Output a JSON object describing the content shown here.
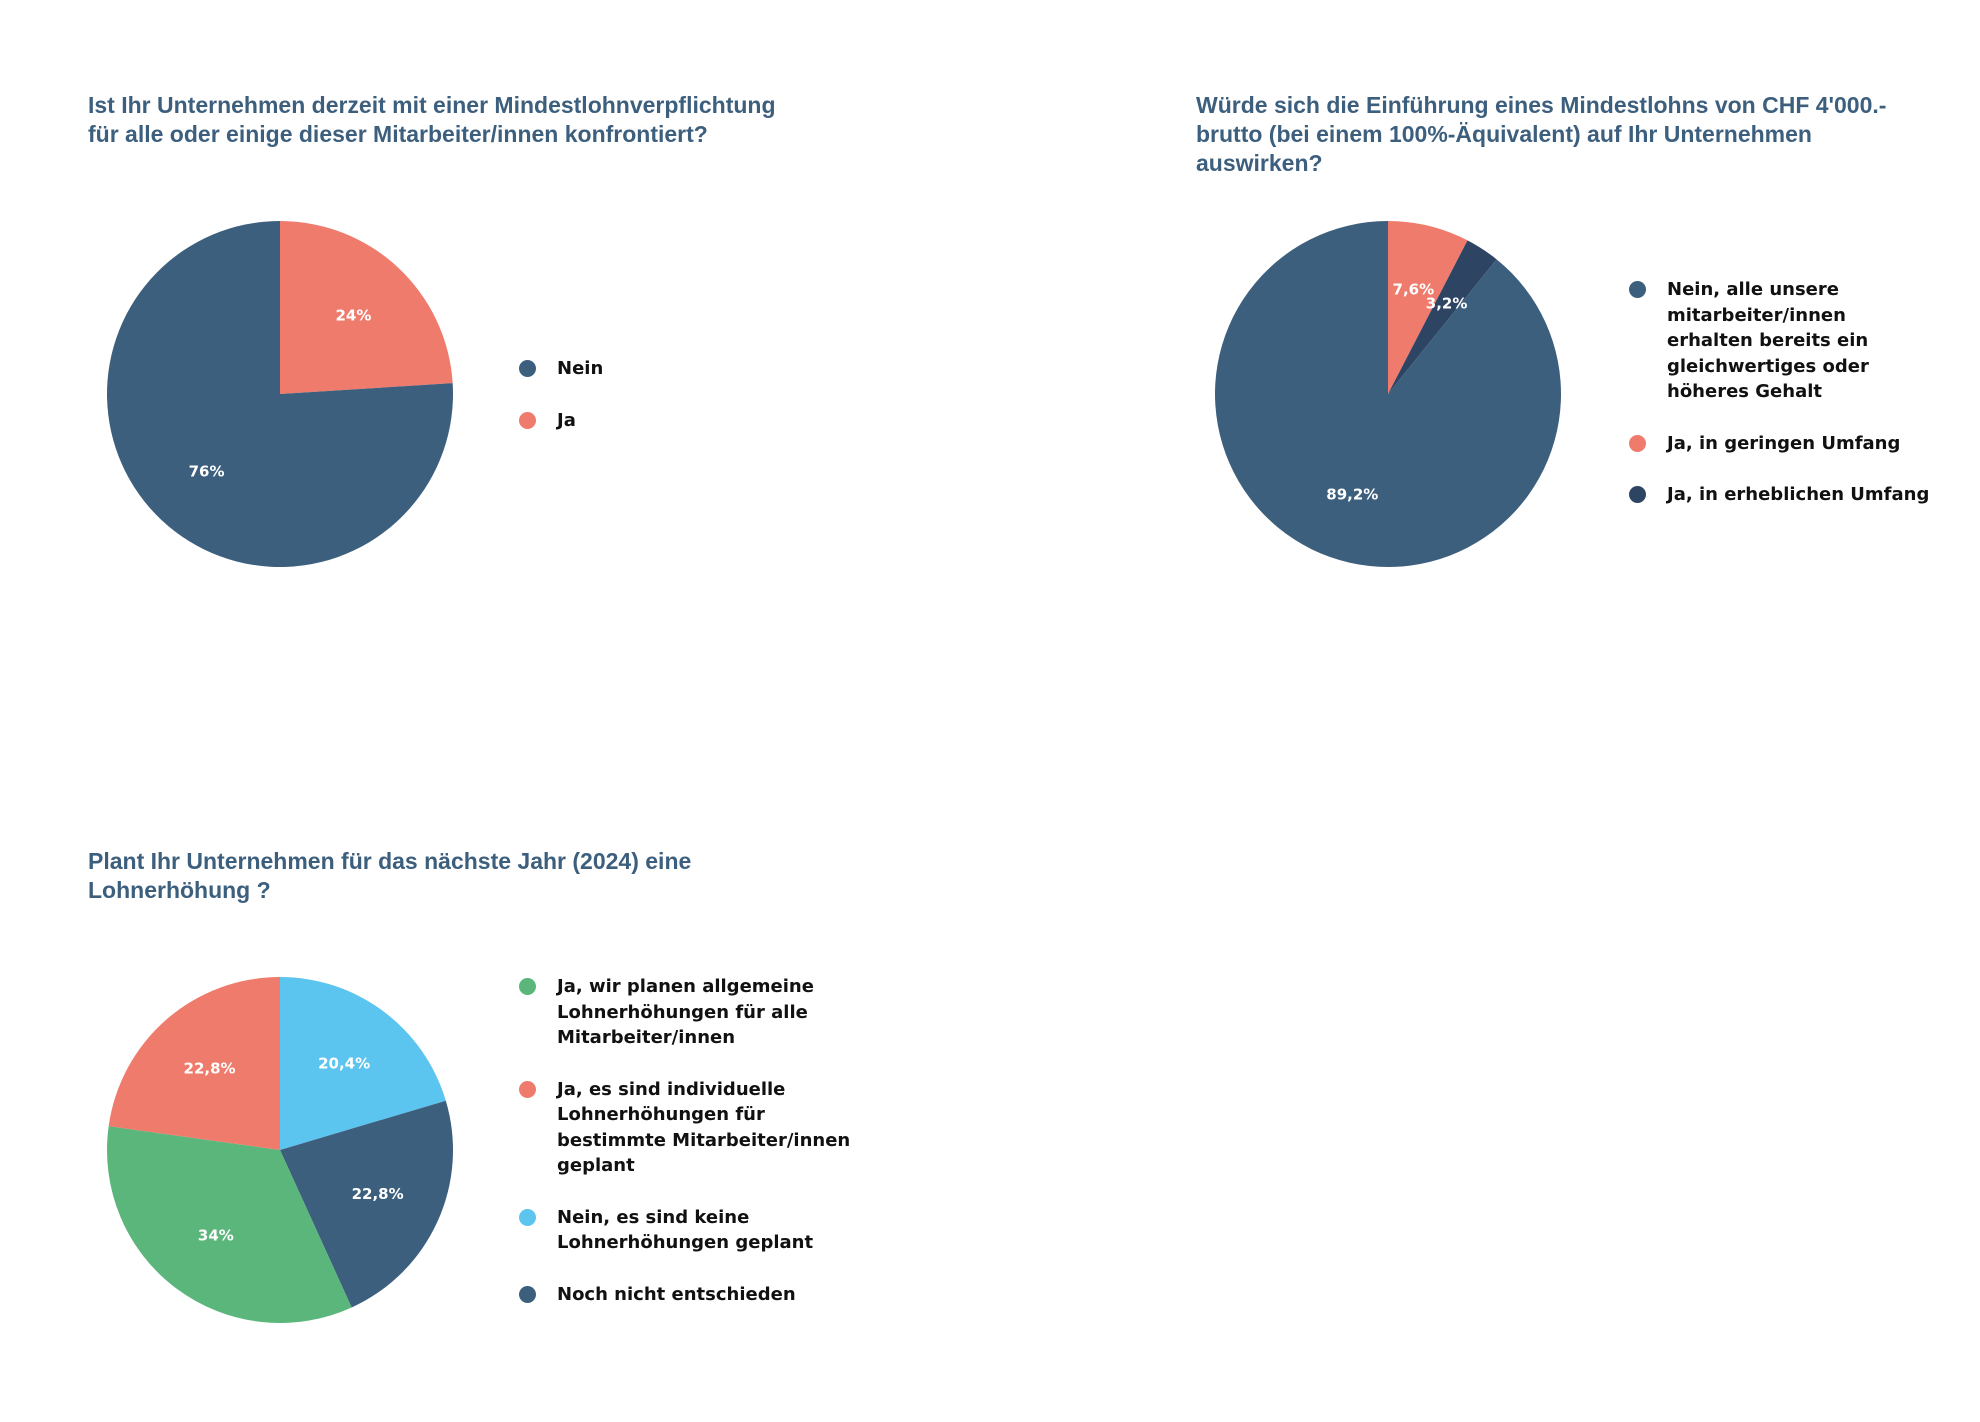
{
  "chart_data": [
    {
      "type": "pie",
      "title": "Ist Ihr Unternehmen derzeit mit einer Mindestlohnverpflichtung für alle oder einige dieser Mitarbeiter/innen konfrontiert?",
      "title_lines": [
        "Ist Ihr Unternehmen derzeit mit einer Mindestlohnverpflichtung",
        "für alle oder einige dieser Mitarbeiter/innen konfrontiert?"
      ],
      "legend_position": "right",
      "slices": [
        {
          "id": "ja",
          "label": "Ja",
          "label_lines": [
            "Ja"
          ],
          "value": 24,
          "display": "24%",
          "color": "#ef7b6d"
        },
        {
          "id": "nein",
          "label": "Nein",
          "label_lines": [
            "Nein"
          ],
          "value": 76,
          "display": "76%",
          "color": "#3d5f7e"
        }
      ],
      "legend_order": [
        "nein",
        "ja"
      ]
    },
    {
      "type": "pie",
      "title": "Würde sich die Einführung eines Mindestlohns von CHF 4'000.- brutto (bei einem 100%-Äquivalent) auf Ihr Unternehmen auswirken?",
      "title_lines": [
        "Würde sich die Einführung eines Mindestlohns von CHF 4'000.-",
        "brutto (bei einem 100%-Äquivalent) auf Ihr Unternehmen",
        "auswirken?"
      ],
      "legend_position": "right",
      "slices": [
        {
          "id": "gering",
          "label": "Ja, in geringen Umfang",
          "label_lines": [
            "Ja, in geringen Umfang"
          ],
          "value": 7.6,
          "display": "7,6%",
          "color": "#ef7b6d"
        },
        {
          "id": "erheblich",
          "label": "Ja, in erheblichen Umfang",
          "label_lines": [
            "Ja, in erheblichen Umfang"
          ],
          "value": 3.2,
          "display": "3,2%",
          "color": "#2e4463"
        },
        {
          "id": "nein",
          "label": "Nein, alle unsere mitarbeiter/innen erhalten bereits ein gleichwertiges oder höheres Gehalt",
          "label_lines": [
            "Nein, alle unsere",
            "mitarbeiter/innen",
            "erhalten bereits ein",
            "gleichwertiges oder",
            "höheres Gehalt"
          ],
          "value": 89.2,
          "display": "89,2%",
          "color": "#3d5f7e"
        }
      ],
      "legend_order": [
        "nein",
        "gering",
        "erheblich"
      ]
    },
    {
      "type": "pie",
      "title": "Plant Ihr Unternehmen für das nächste Jahr (2024) eine Lohnerhöhung ?",
      "title_lines": [
        "Plant Ihr Unternehmen für das nächste Jahr (2024) eine",
        "Lohnerhöhung ?"
      ],
      "legend_position": "right",
      "slices": [
        {
          "id": "keine",
          "label": "Nein, es sind keine Lohnerhöhungen geplant",
          "label_lines": [
            "Nein, es sind keine",
            "Lohnerhöhungen geplant"
          ],
          "value": 20.4,
          "display": "20,4%",
          "color": "#5bc4ef"
        },
        {
          "id": "offen",
          "label": "Noch nicht entschieden",
          "label_lines": [
            "Noch nicht entschieden"
          ],
          "value": 22.8,
          "display": "22,8%",
          "color": "#3d5f7e"
        },
        {
          "id": "allgemein",
          "label": "Ja, wir planen allgemeine Lohnerhöhungen für alle Mitarbeiter/innen",
          "label_lines": [
            "Ja, wir planen allgemeine",
            "Lohnerhöhungen für alle",
            "Mitarbeiter/innen"
          ],
          "value": 34,
          "display": "34%",
          "color": "#5bb67b"
        },
        {
          "id": "individuell",
          "label": "Ja, es sind individuelle Lohnerhöhungen für bestimmte Mitarbeiter/innen geplant",
          "label_lines": [
            "Ja, es sind individuelle",
            "Lohnerhöhungen für",
            "bestimmte Mitarbeiter/innen",
            "geplant"
          ],
          "value": 22.8,
          "display": "22,8%",
          "color": "#ef7b6d"
        }
      ],
      "legend_order": [
        "allgemein",
        "individuell",
        "keine",
        "offen"
      ]
    }
  ]
}
